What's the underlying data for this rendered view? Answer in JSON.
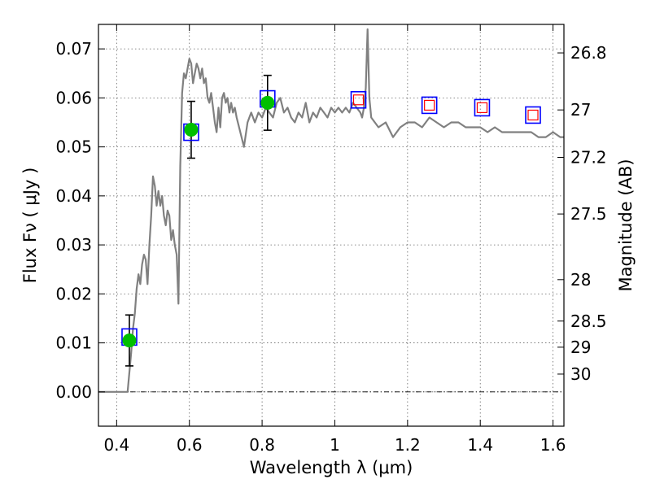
{
  "chart_data": {
    "type": "scatter",
    "xlabel": "Wavelength  λ (μm)",
    "ylabel": "Flux  Fν  ( μJy )",
    "y2label": "Magnitude (AB)",
    "xlim": [
      0.35,
      1.63
    ],
    "ylim": [
      -0.007,
      0.075
    ],
    "grid": true,
    "x_ticks": [
      {
        "value": 0.4,
        "label": "0.4"
      },
      {
        "value": 0.6,
        "label": "0.6"
      },
      {
        "value": 0.8,
        "label": "0.8"
      },
      {
        "value": 1.0,
        "label": "1"
      },
      {
        "value": 1.2,
        "label": "1.2"
      },
      {
        "value": 1.4,
        "label": "1.4"
      },
      {
        "value": 1.6,
        "label": "1.6"
      }
    ],
    "y_ticks": [
      {
        "value": 0.0,
        "label": "0.00"
      },
      {
        "value": 0.01,
        "label": "0.01"
      },
      {
        "value": 0.02,
        "label": "0.02"
      },
      {
        "value": 0.03,
        "label": "0.03"
      },
      {
        "value": 0.04,
        "label": "0.04"
      },
      {
        "value": 0.05,
        "label": "0.05"
      },
      {
        "value": 0.06,
        "label": "0.06"
      },
      {
        "value": 0.07,
        "label": "0.07"
      }
    ],
    "y2_ticks": [
      {
        "magnitude": 26.8,
        "label": "26.8"
      },
      {
        "magnitude": 27.0,
        "label": "27"
      },
      {
        "magnitude": 27.2,
        "label": "27.2"
      },
      {
        "magnitude": 27.5,
        "label": "27.5"
      },
      {
        "magnitude": 28.0,
        "label": "28"
      },
      {
        "magnitude": 28.5,
        "label": "28.5"
      },
      {
        "magnitude": 29.0,
        "label": "29"
      },
      {
        "magnitude": 30.0,
        "label": "30"
      }
    ],
    "series": [
      {
        "kind": "model_spectrum",
        "color": "#808080",
        "x": [
          0.35,
          0.43,
          0.44,
          0.445,
          0.45,
          0.455,
          0.46,
          0.465,
          0.47,
          0.475,
          0.48,
          0.485,
          0.49,
          0.495,
          0.5,
          0.505,
          0.51,
          0.515,
          0.52,
          0.525,
          0.53,
          0.535,
          0.54,
          0.545,
          0.55,
          0.555,
          0.56,
          0.565,
          0.57,
          0.575,
          0.58,
          0.585,
          0.59,
          0.595,
          0.6,
          0.605,
          0.61,
          0.615,
          0.62,
          0.625,
          0.63,
          0.635,
          0.64,
          0.645,
          0.65,
          0.655,
          0.66,
          0.665,
          0.67,
          0.675,
          0.68,
          0.685,
          0.69,
          0.695,
          0.7,
          0.705,
          0.71,
          0.715,
          0.72,
          0.725,
          0.73,
          0.74,
          0.75,
          0.76,
          0.77,
          0.78,
          0.79,
          0.8,
          0.81,
          0.82,
          0.83,
          0.84,
          0.85,
          0.86,
          0.87,
          0.88,
          0.89,
          0.9,
          0.91,
          0.92,
          0.93,
          0.94,
          0.95,
          0.96,
          0.97,
          0.98,
          0.99,
          1.0,
          1.01,
          1.02,
          1.03,
          1.04,
          1.05,
          1.06,
          1.07,
          1.075,
          1.08,
          1.085,
          1.09,
          1.095,
          1.1,
          1.12,
          1.14,
          1.16,
          1.18,
          1.2,
          1.22,
          1.24,
          1.26,
          1.28,
          1.3,
          1.32,
          1.34,
          1.36,
          1.38,
          1.4,
          1.42,
          1.44,
          1.46,
          1.48,
          1.5,
          1.52,
          1.54,
          1.56,
          1.58,
          1.6,
          1.62,
          1.63
        ],
        "y": [
          0.0,
          0.0,
          0.008,
          0.013,
          0.016,
          0.021,
          0.024,
          0.022,
          0.026,
          0.028,
          0.027,
          0.022,
          0.03,
          0.036,
          0.044,
          0.042,
          0.038,
          0.041,
          0.038,
          0.04,
          0.036,
          0.034,
          0.037,
          0.036,
          0.031,
          0.033,
          0.03,
          0.028,
          0.018,
          0.046,
          0.061,
          0.065,
          0.064,
          0.066,
          0.068,
          0.067,
          0.063,
          0.065,
          0.067,
          0.066,
          0.064,
          0.066,
          0.063,
          0.064,
          0.06,
          0.059,
          0.061,
          0.058,
          0.055,
          0.053,
          0.058,
          0.054,
          0.06,
          0.061,
          0.059,
          0.06,
          0.057,
          0.059,
          0.057,
          0.058,
          0.056,
          0.053,
          0.05,
          0.055,
          0.057,
          0.055,
          0.057,
          0.056,
          0.058,
          0.057,
          0.056,
          0.059,
          0.06,
          0.057,
          0.058,
          0.056,
          0.055,
          0.057,
          0.056,
          0.059,
          0.055,
          0.057,
          0.056,
          0.058,
          0.057,
          0.056,
          0.058,
          0.057,
          0.058,
          0.057,
          0.058,
          0.057,
          0.059,
          0.058,
          0.057,
          0.056,
          0.058,
          0.062,
          0.074,
          0.06,
          0.056,
          0.054,
          0.055,
          0.052,
          0.054,
          0.055,
          0.055,
          0.054,
          0.056,
          0.055,
          0.054,
          0.055,
          0.055,
          0.054,
          0.054,
          0.054,
          0.053,
          0.054,
          0.053,
          0.053,
          0.053,
          0.053,
          0.053,
          0.052,
          0.052,
          0.053,
          0.052,
          0.052
        ]
      },
      {
        "kind": "observed_flux",
        "marker": "filled-circle",
        "color": "#00bf00",
        "x": [
          0.435,
          0.605,
          0.815
        ],
        "y": [
          0.0105,
          0.0535,
          0.059
        ],
        "yerr": [
          0.0052,
          0.0058,
          0.0056
        ]
      },
      {
        "kind": "model_band_flux",
        "marker": "open-square",
        "color": "#0000ff",
        "x": [
          0.435,
          0.605,
          0.815,
          1.065,
          1.26,
          1.405,
          1.545
        ],
        "y": [
          0.0112,
          0.053,
          0.0598,
          0.0596,
          0.0585,
          0.058,
          0.0565
        ]
      },
      {
        "kind": "upper_limit_band_flux",
        "marker": "open-square-small",
        "color": "#ff0000",
        "x": [
          1.065,
          1.26,
          1.405,
          1.545
        ],
        "y": [
          0.0596,
          0.0585,
          0.058,
          0.0565
        ]
      }
    ]
  }
}
